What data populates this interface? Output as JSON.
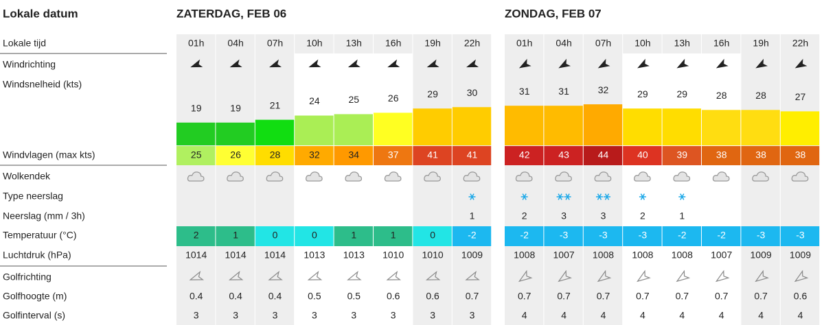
{
  "header": {
    "label": "Lokale datum"
  },
  "row_labels": [
    "Lokale tijd",
    "Windrichting",
    "Windsnelheid (kts)",
    "Windvlagen (max kts)",
    "Wolkendek",
    "Type neerslag",
    "Neerslag (mm / 3h)",
    "Temperatuur (°C)",
    "Luchtdruk (hPa)",
    "Golfrichting",
    "Golfhoogte (m)",
    "Golfinterval (s)"
  ],
  "days": [
    {
      "title": "ZATERDAG, FEB 06",
      "hours": [
        "01h",
        "04h",
        "07h",
        "10h",
        "13h",
        "16h",
        "19h",
        "22h"
      ],
      "wind_speed": [
        19,
        19,
        21,
        24,
        25,
        26,
        29,
        30
      ],
      "wind_speed_colors": [
        "#22cc22",
        "#22cc22",
        "#11dd11",
        "#aaee55",
        "#aaee55",
        "#ffff22",
        "#ffcc00",
        "#ffcc00"
      ],
      "gusts": [
        25,
        26,
        28,
        32,
        34,
        37,
        41,
        41
      ],
      "gust_colors": [
        "#b0f060",
        "#ffff33",
        "#ffdd00",
        "#ffaa00",
        "#ff9900",
        "#ee7711",
        "#dd4422",
        "#dd4422"
      ],
      "snow": [
        0,
        0,
        0,
        0,
        0,
        0,
        0,
        1
      ],
      "precipitation": [
        null,
        null,
        null,
        null,
        null,
        null,
        null,
        1
      ],
      "temperature": [
        2,
        1,
        0,
        0,
        1,
        1,
        0,
        -2
      ],
      "temperature_colors": [
        "#2dbd8a",
        "#2dbd8a",
        "#22e5e5",
        "#22e5e5",
        "#2dbd8a",
        "#2dbd8a",
        "#22e5e5",
        "#1cb8f0"
      ],
      "pressure": [
        1014,
        1014,
        1014,
        1013,
        1013,
        1010,
        1010,
        1009
      ],
      "wave_height": [
        0.4,
        0.4,
        0.4,
        0.5,
        0.5,
        0.6,
        0.6,
        0.7
      ],
      "wave_period": [
        3,
        3,
        3,
        3,
        3,
        3,
        3,
        3
      ]
    },
    {
      "title": "ZONDAG, FEB 07",
      "hours": [
        "01h",
        "04h",
        "07h",
        "10h",
        "13h",
        "16h",
        "19h",
        "22h"
      ],
      "wind_speed": [
        31,
        31,
        32,
        29,
        29,
        28,
        28,
        27
      ],
      "wind_speed_colors": [
        "#ffbb00",
        "#ffbb00",
        "#ffaa00",
        "#ffdd00",
        "#ffdd00",
        "#ffdd11",
        "#ffdd11",
        "#ffee00"
      ],
      "gusts": [
        42,
        43,
        44,
        40,
        39,
        38,
        38,
        38
      ],
      "gust_colors": [
        "#cc2222",
        "#cc2222",
        "#b81b1b",
        "#dd3322",
        "#dd5522",
        "#e06611",
        "#e06611",
        "#e06611"
      ],
      "snow": [
        1,
        2,
        2,
        1,
        1,
        0,
        0,
        0
      ],
      "precipitation": [
        2,
        3,
        3,
        2,
        1,
        null,
        null,
        null
      ],
      "temperature": [
        -2,
        -3,
        -3,
        -3,
        -2,
        -2,
        -3,
        -3
      ],
      "temperature_colors": [
        "#1cb8f0",
        "#1cb8f0",
        "#1cb8f0",
        "#1cb8f0",
        "#1cb8f0",
        "#1cb8f0",
        "#1cb8f0",
        "#1cb8f0"
      ],
      "pressure": [
        1008,
        1007,
        1008,
        1008,
        1008,
        1007,
        1009,
        1009
      ],
      "wave_height": [
        0.7,
        0.7,
        0.7,
        0.7,
        0.7,
        0.7,
        0.7,
        0.6
      ],
      "wave_period": [
        4,
        4,
        4,
        4,
        4,
        4,
        4,
        4
      ]
    }
  ]
}
